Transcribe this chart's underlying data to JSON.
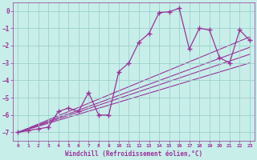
{
  "xlabel": "Windchill (Refroidissement éolien,°C)",
  "xlim": [
    -0.5,
    23.5
  ],
  "ylim": [
    -7.5,
    0.5
  ],
  "yticks": [
    0,
    -1,
    -2,
    -3,
    -4,
    -5,
    -6,
    -7
  ],
  "xticks": [
    0,
    1,
    2,
    3,
    4,
    5,
    6,
    7,
    8,
    9,
    10,
    11,
    12,
    13,
    14,
    15,
    16,
    17,
    18,
    19,
    20,
    21,
    22,
    23
  ],
  "bg_color": "#c8eeea",
  "grid_color": "#9ecfca",
  "line_color": "#993399",
  "zigzag_x": [
    0,
    1,
    2,
    3,
    4,
    5,
    6,
    7,
    8,
    9,
    10,
    11,
    12,
    13,
    14,
    15,
    16,
    17,
    18,
    19,
    20,
    21,
    22,
    23
  ],
  "zigzag_y": [
    -7.0,
    -6.9,
    -6.8,
    -6.7,
    -5.8,
    -5.6,
    -5.8,
    -4.7,
    -6.0,
    -6.0,
    -3.5,
    -3.0,
    -1.8,
    -1.3,
    -0.1,
    -0.05,
    0.15,
    -2.2,
    -1.0,
    -1.1,
    -2.7,
    -3.0,
    -1.1,
    -1.7
  ],
  "trend1_x": [
    0,
    23
  ],
  "trend1_y": [
    -7.0,
    -1.5
  ],
  "trend2_x": [
    0,
    23
  ],
  "trend2_y": [
    -7.0,
    -2.1
  ],
  "trend3_x": [
    0,
    23
  ],
  "trend3_y": [
    -7.0,
    -2.5
  ],
  "trend4_x": [
    0,
    23
  ],
  "trend4_y": [
    -7.0,
    -3.0
  ]
}
